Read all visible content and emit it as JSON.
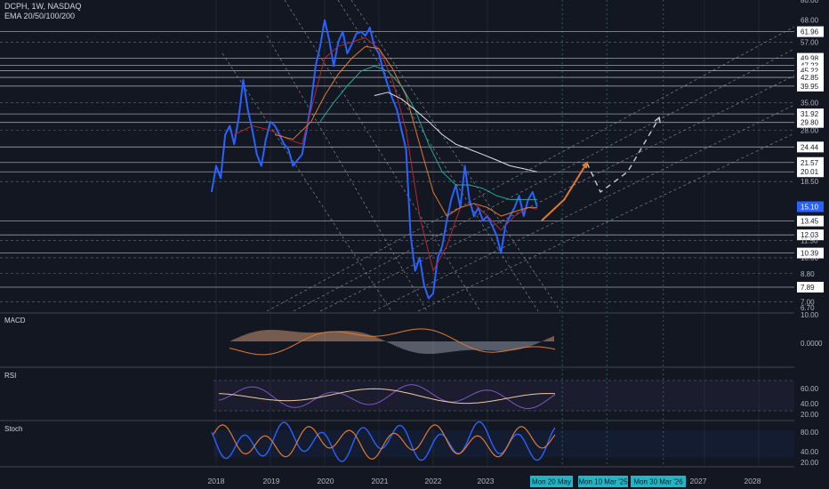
{
  "header": {
    "symbol_line": "DCPH, 1W, NASDAQ",
    "indicator_line": "EMA 20/50/100/200"
  },
  "panes": {
    "macd_label": "MACD",
    "rsi_label": "RSI",
    "stoch_label": "Stoch"
  },
  "colors": {
    "background": "#131722",
    "price": "#2962ff",
    "ema20": "#b22833",
    "ema50": "#e07a2e",
    "ema100": "#26a69a",
    "ema200": "#e0e3eb",
    "projection": "#e07a2e",
    "highlight": "#2962ff",
    "rsi_line": "#7e57c2",
    "rsi_signal": "#f0c8a0",
    "stoch_k": "#2962ff",
    "stoch_d": "#e07a2e"
  },
  "chart_data": {
    "type": "line",
    "title": "DCPH, 1W, NASDAQ",
    "scale": "log",
    "price_axis_ticks": [
      "80.00",
      "68.00",
      "61.96",
      "57.00",
      "49.98",
      "47.23",
      "45.22",
      "42.85",
      "39.95",
      "35.00",
      "31.92",
      "29.80",
      "28.00",
      "24.44",
      "21.57",
      "20.01",
      "18.50",
      "15.10",
      "13.45",
      "12.03",
      "11.50",
      "10.00",
      "10.39",
      "8.80",
      "7.89",
      "7.00",
      "6.70"
    ],
    "horizontal_levels": [
      61.96,
      49.98,
      47.23,
      45.22,
      42.85,
      39.95,
      31.92,
      29.8,
      24.44,
      21.57,
      20.01,
      13.45,
      12.03,
      10.39,
      7.89
    ],
    "labeled_levels": [
      "61.96",
      "49.98",
      "47.23",
      "45.22",
      "42.85",
      "39.95",
      "31.92",
      "29.80",
      "24.44",
      "21.57",
      "20.01",
      "13.45",
      "12.03",
      "10.39",
      "7.89"
    ],
    "current_price": "15.10",
    "time_axis": [
      "2018",
      "2019",
      "2020",
      "2021",
      "2022",
      "2023",
      "2027",
      "2028"
    ],
    "time_highlights": [
      "Mon 20 May",
      "Mon 10 Mar '25",
      "Mon 30 Mar '26"
    ],
    "ylim": [
      6.5,
      80
    ],
    "series": [
      {
        "name": "DCPH",
        "points": [
          [
            "2017-12",
            17
          ],
          [
            "2018-01",
            21
          ],
          [
            "2018-02",
            19
          ],
          [
            "2018-03",
            27
          ],
          [
            "2018-04",
            29
          ],
          [
            "2018-05",
            25
          ],
          [
            "2018-06",
            31
          ],
          [
            "2018-07",
            42
          ],
          [
            "2018-08",
            33
          ],
          [
            "2018-09",
            28
          ],
          [
            "2018-10",
            23
          ],
          [
            "2018-11",
            21
          ],
          [
            "2018-12",
            26
          ],
          [
            "2019-01",
            30
          ],
          [
            "2019-02",
            29
          ],
          [
            "2019-03",
            27
          ],
          [
            "2019-04",
            25
          ],
          [
            "2019-05",
            24
          ],
          [
            "2019-06",
            21
          ],
          [
            "2019-07",
            22
          ],
          [
            "2019-08",
            23
          ],
          [
            "2019-09",
            28
          ],
          [
            "2019-10",
            35
          ],
          [
            "2019-11",
            47
          ],
          [
            "2019-12",
            55
          ],
          [
            "2020-01",
            68
          ],
          [
            "2020-02",
            58
          ],
          [
            "2020-03",
            47
          ],
          [
            "2020-04",
            57
          ],
          [
            "2020-05",
            62
          ],
          [
            "2020-06",
            52
          ],
          [
            "2020-07",
            56
          ],
          [
            "2020-08",
            61
          ],
          [
            "2020-09",
            62
          ],
          [
            "2020-10",
            60
          ],
          [
            "2020-11",
            64
          ],
          [
            "2020-12",
            55
          ],
          [
            "2021-01",
            52
          ],
          [
            "2021-02",
            45
          ],
          [
            "2021-03",
            40
          ],
          [
            "2021-04",
            36
          ],
          [
            "2021-05",
            33
          ],
          [
            "2021-06",
            28
          ],
          [
            "2021-07",
            24
          ],
          [
            "2021-08",
            12
          ],
          [
            "2021-09",
            9
          ],
          [
            "2021-10",
            10
          ],
          [
            "2021-11",
            8
          ],
          [
            "2021-12",
            7.2
          ],
          [
            "2022-01",
            7.5
          ],
          [
            "2022-02",
            10
          ],
          [
            "2022-03",
            11
          ],
          [
            "2022-04",
            13.5
          ],
          [
            "2022-05",
            16
          ],
          [
            "2022-06",
            18
          ],
          [
            "2022-07",
            15
          ],
          [
            "2022-08",
            21
          ],
          [
            "2022-09",
            16
          ],
          [
            "2022-10",
            14
          ],
          [
            "2022-11",
            15
          ],
          [
            "2022-12",
            13.5
          ],
          [
            "2023-01",
            14
          ],
          [
            "2023-02",
            13
          ],
          [
            "2023-03",
            12
          ],
          [
            "2023-04",
            10.4
          ],
          [
            "2023-05",
            13
          ],
          [
            "2023-06",
            14
          ],
          [
            "2023-07",
            15
          ],
          [
            "2023-08",
            16.5
          ],
          [
            "2023-09",
            14
          ],
          [
            "2023-10",
            16
          ],
          [
            "2023-11",
            17
          ],
          [
            "2023-12",
            15.1
          ]
        ]
      },
      {
        "name": "EMA 20",
        "points": [
          [
            "2018-05",
            27
          ],
          [
            "2018-09",
            29
          ],
          [
            "2019-01",
            28
          ],
          [
            "2019-05",
            26
          ],
          [
            "2019-08",
            25
          ],
          [
            "2019-11",
            38
          ],
          [
            "2020-01",
            50
          ],
          [
            "2020-04",
            55
          ],
          [
            "2020-07",
            57
          ],
          [
            "2020-10",
            59
          ],
          [
            "2021-01",
            54
          ],
          [
            "2021-04",
            42
          ],
          [
            "2021-07",
            28
          ],
          [
            "2021-10",
            14
          ],
          [
            "2022-01",
            9
          ],
          [
            "2022-04",
            11
          ],
          [
            "2022-07",
            15
          ],
          [
            "2022-10",
            15.5
          ],
          [
            "2023-01",
            14
          ],
          [
            "2023-04",
            12.5
          ],
          [
            "2023-07",
            14
          ],
          [
            "2023-10",
            15
          ],
          [
            "2023-12",
            14.8
          ]
        ]
      },
      {
        "name": "EMA 50",
        "points": [
          [
            "2019-02",
            27
          ],
          [
            "2019-06",
            26
          ],
          [
            "2019-10",
            30
          ],
          [
            "2020-01",
            37
          ],
          [
            "2020-04",
            44
          ],
          [
            "2020-07",
            50
          ],
          [
            "2020-10",
            55
          ],
          [
            "2021-01",
            54
          ],
          [
            "2021-04",
            46
          ],
          [
            "2021-07",
            37
          ],
          [
            "2021-10",
            25
          ],
          [
            "2022-01",
            17
          ],
          [
            "2022-04",
            14
          ],
          [
            "2022-07",
            15
          ],
          [
            "2022-10",
            15.5
          ],
          [
            "2023-01",
            15
          ],
          [
            "2023-04",
            14
          ],
          [
            "2023-07",
            14.5
          ],
          [
            "2023-10",
            15
          ],
          [
            "2023-12",
            15
          ]
        ]
      },
      {
        "name": "EMA 100",
        "points": [
          [
            "2019-12",
            30
          ],
          [
            "2020-03",
            35
          ],
          [
            "2020-06",
            40
          ],
          [
            "2020-09",
            45
          ],
          [
            "2020-12",
            47
          ],
          [
            "2021-03",
            45
          ],
          [
            "2021-06",
            40
          ],
          [
            "2021-09",
            33
          ],
          [
            "2021-12",
            25
          ],
          [
            "2022-03",
            20
          ],
          [
            "2022-06",
            18
          ],
          [
            "2022-09",
            18
          ],
          [
            "2022-12",
            17.5
          ],
          [
            "2023-03",
            16.5
          ],
          [
            "2023-06",
            16
          ],
          [
            "2023-09",
            16
          ],
          [
            "2023-12",
            16
          ]
        ]
      },
      {
        "name": "EMA 200",
        "points": [
          [
            "2020-12",
            37
          ],
          [
            "2021-03",
            38
          ],
          [
            "2021-06",
            36
          ],
          [
            "2021-09",
            33
          ],
          [
            "2021-12",
            30
          ],
          [
            "2022-03",
            27
          ],
          [
            "2022-06",
            25
          ],
          [
            "2022-09",
            24
          ],
          [
            "2022-12",
            23
          ],
          [
            "2023-03",
            22
          ],
          [
            "2023-06",
            21
          ],
          [
            "2023-09",
            20.5
          ],
          [
            "2023-12",
            20
          ]
        ]
      },
      {
        "name": "Projection 1",
        "points": [
          [
            "2024-01",
            13.5
          ],
          [
            "2024-06",
            16
          ],
          [
            "2024-11",
            21.5
          ]
        ]
      },
      {
        "name": "Projection 2",
        "points": [
          [
            "2024-11",
            21.5
          ],
          [
            "2025-02",
            17
          ],
          [
            "2025-08",
            20
          ],
          [
            "2026-03",
            31
          ]
        ]
      }
    ],
    "macd": {
      "ticks": [
        "10.00",
        "0.0000"
      ]
    },
    "rsi": {
      "ticks": [
        "60.00",
        "40.00",
        "20.00"
      ],
      "band": [
        30,
        70
      ]
    },
    "stoch": {
      "ticks": [
        "80.00",
        "40.00",
        "20.00"
      ]
    }
  }
}
